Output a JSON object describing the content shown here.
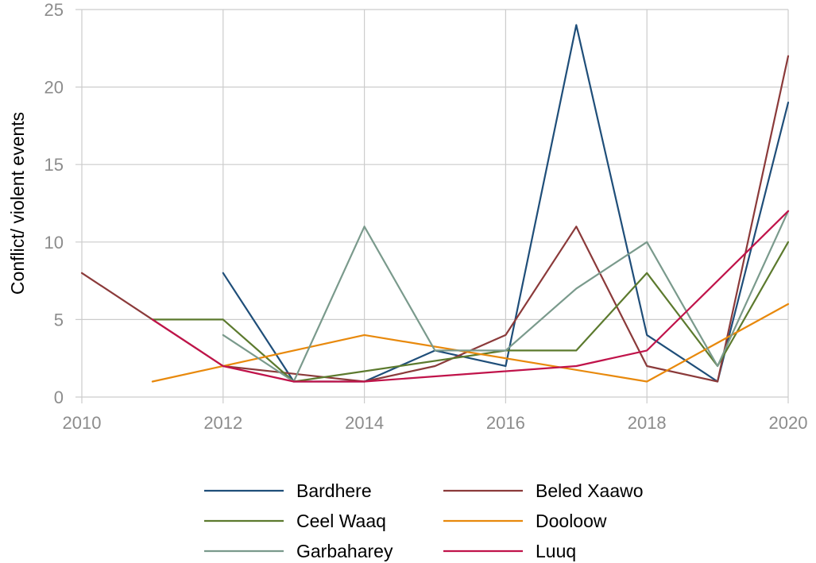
{
  "chart_data": {
    "type": "line",
    "title": "",
    "xlabel": "",
    "ylabel": "Conflict/ violent events",
    "xlim": [
      2010,
      2020
    ],
    "ylim": [
      0,
      25
    ],
    "xticks": [
      2010,
      2012,
      2014,
      2016,
      2018,
      2020
    ],
    "yticks": [
      0,
      5,
      10,
      15,
      20,
      25
    ],
    "grid": true,
    "legend_position": "bottom",
    "series": [
      {
        "name": "Bardhere",
        "color": "#1f4e79",
        "points": [
          [
            2012,
            8
          ],
          [
            2013,
            1
          ],
          [
            2014,
            1
          ],
          [
            2015,
            3
          ],
          [
            2016,
            2
          ],
          [
            2017,
            24
          ],
          [
            2018,
            4
          ],
          [
            2019,
            1
          ],
          [
            2020,
            19
          ]
        ]
      },
      {
        "name": "Beled Xaawo",
        "color": "#8b3a3a",
        "points": [
          [
            2010,
            8
          ],
          [
            2011,
            5
          ],
          [
            2012,
            2
          ],
          [
            2013,
            1.5
          ],
          [
            2014,
            1
          ],
          [
            2015,
            2
          ],
          [
            2016,
            4
          ],
          [
            2017,
            11
          ],
          [
            2018,
            2
          ],
          [
            2019,
            1
          ],
          [
            2020,
            22
          ]
        ]
      },
      {
        "name": "Ceel Waaq",
        "color": "#5c7a2e",
        "points": [
          [
            2011,
            5
          ],
          [
            2012,
            5
          ],
          [
            2013,
            1
          ],
          [
            2016,
            3
          ],
          [
            2017,
            3
          ],
          [
            2018,
            8
          ],
          [
            2019,
            2
          ],
          [
            2020,
            10
          ]
        ]
      },
      {
        "name": "Dooloow",
        "color": "#e8890c",
        "points": [
          [
            2011,
            1
          ],
          [
            2014,
            4
          ],
          [
            2018,
            1
          ],
          [
            2020,
            6
          ]
        ]
      },
      {
        "name": "Garbaharey",
        "color": "#7a9a8c",
        "points": [
          [
            2012,
            4
          ],
          [
            2013,
            1
          ],
          [
            2014,
            11
          ],
          [
            2015,
            3
          ],
          [
            2016,
            3
          ],
          [
            2017,
            7
          ],
          [
            2018,
            10
          ],
          [
            2019,
            2
          ],
          [
            2020,
            12
          ]
        ]
      },
      {
        "name": "Luuq",
        "color": "#c0134a",
        "points": [
          [
            2011,
            5
          ],
          [
            2012,
            2
          ],
          [
            2013,
            1
          ],
          [
            2014,
            1
          ],
          [
            2017,
            2
          ],
          [
            2018,
            3
          ],
          [
            2020,
            12
          ]
        ]
      }
    ]
  }
}
